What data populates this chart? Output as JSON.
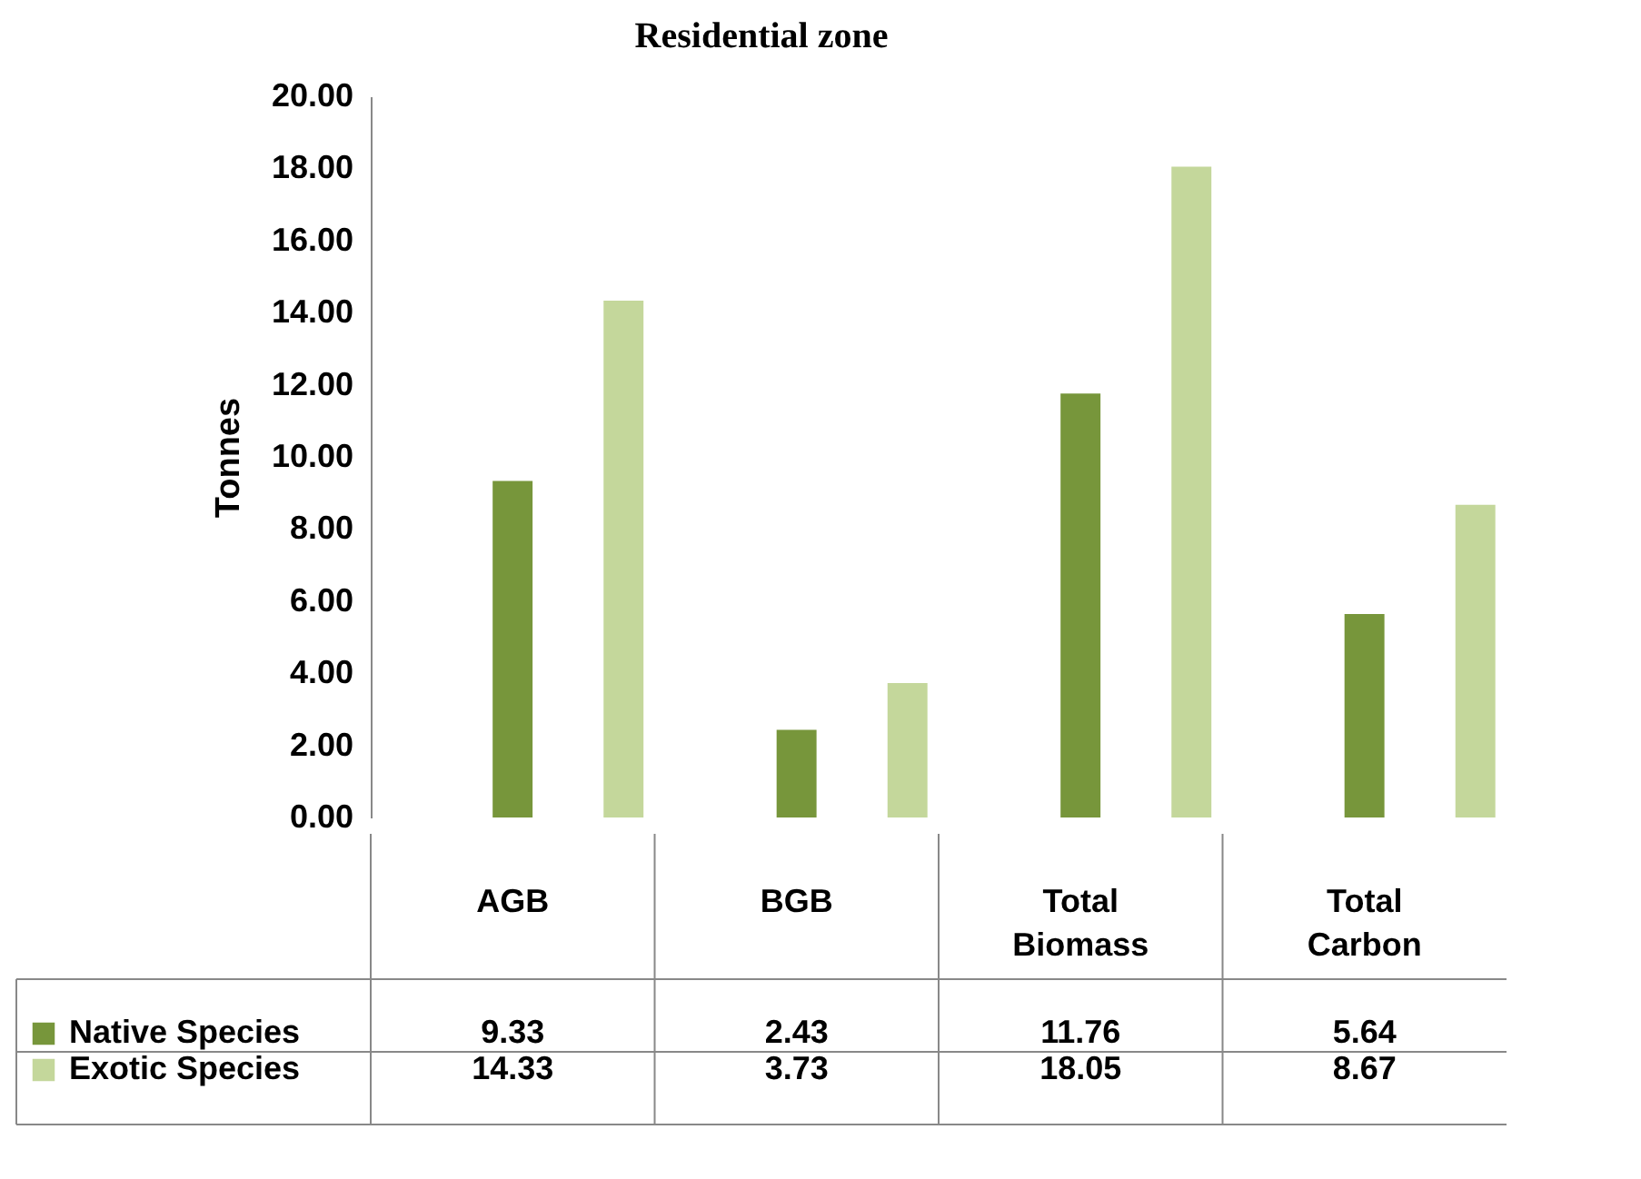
{
  "chart_data": {
    "type": "bar",
    "title": "Residential zone",
    "ylabel": "Tonnes",
    "categories": [
      "AGB",
      "BGB",
      "Total Biomass",
      "Total Carbon"
    ],
    "series": [
      {
        "name": "Native Species",
        "color": "#77963b",
        "values": [
          9.33,
          2.43,
          11.76,
          5.64
        ]
      },
      {
        "name": "Exotic Species",
        "color": "#c4d79b",
        "values": [
          14.33,
          3.73,
          18.05,
          8.67
        ]
      }
    ],
    "ylim": [
      0,
      20
    ],
    "yticks": [
      {
        "value": 0,
        "label": "0.00"
      },
      {
        "value": 2,
        "label": "2.00"
      },
      {
        "value": 4,
        "label": "4.00"
      },
      {
        "value": 6,
        "label": "6.00"
      },
      {
        "value": 8,
        "label": "8.00"
      },
      {
        "value": 10,
        "label": "10.00"
      },
      {
        "value": 12,
        "label": "12.00"
      },
      {
        "value": 14,
        "label": "14.00"
      },
      {
        "value": 16,
        "label": "16.00"
      },
      {
        "value": 18,
        "label": "18.00"
      },
      {
        "value": 20,
        "label": "20.00"
      }
    ],
    "grid": false,
    "legend": "bottom",
    "data_labels": true
  }
}
